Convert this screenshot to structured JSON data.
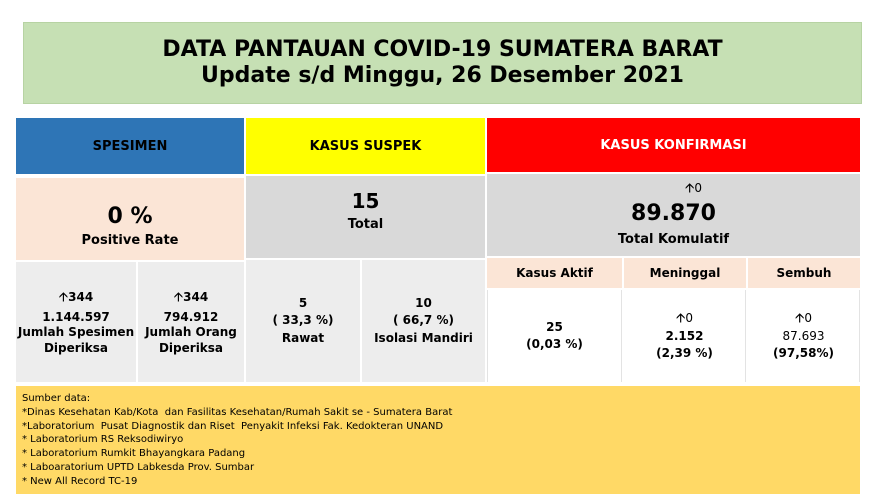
{
  "header": {
    "title_line1": "DATA PANTAUAN COVID-19 SUMATERA BARAT",
    "title_line2": "Update s/d Minggu, 26 Desember 2021"
  },
  "colors": {
    "spesimen": "#2e75b6",
    "suspek": "#ffff00",
    "konfirmasi": "#ff0000",
    "title_bg": "#c6e0b4",
    "sources_bg": "#ffd966"
  },
  "spesimen": {
    "header": "SPESIMEN",
    "positive_rate_value": "0 %",
    "positive_rate_label": "Positive Rate",
    "jumlah_spesimen": {
      "arrow": "🡩",
      "increase": "344",
      "value": "1.144.597",
      "label_line1": "Jumlah Spesimen",
      "label_line2": "Diperiksa"
    },
    "jumlah_orang": {
      "arrow": "🡩",
      "increase": "344",
      "value": "794.912",
      "label_line1": "Jumlah Orang",
      "label_line2": "Diperiksa"
    }
  },
  "suspek": {
    "header": "KASUS SUSPEK",
    "total_value": "15",
    "total_label": "Total",
    "rawat": {
      "value": "5",
      "percent": "( 33,3 %)",
      "label": "Rawat"
    },
    "isolasi": {
      "value": "10",
      "percent": "( 66,7 %)",
      "label": "Isolasi Mandiri"
    }
  },
  "konfirmasi": {
    "header": "KASUS KONFIRMASI",
    "arrow": "🡩",
    "total_increase": "0",
    "total_value": "89.870",
    "total_label": "Total Komulatif",
    "aktif": {
      "header": "Kasus Aktif",
      "value": "25",
      "percent": "(0,03 %)"
    },
    "meninggal": {
      "header": "Meninggal",
      "arrow": "🡩",
      "increase": "0",
      "value": "2.152",
      "percent": "(2,39 %)"
    },
    "sembuh": {
      "header": "Sembuh",
      "arrow": "🡩",
      "increase": "0",
      "value": "87.693",
      "percent": "(97,58%)"
    }
  },
  "sources": {
    "title": "Sumber data:",
    "items": [
      "*Dinas Kesehatan Kab/Kota  dan Fasilitas Kesehatan/Rumah Sakit se - Sumatera Barat",
      "*Laboratorium  Pusat Diagnostik dan Riset  Penyakit Infeksi Fak. Kedokteran UNAND",
      "* Laboratorium RS Reksodiwiryo",
      "* Laboratorium Rumkit Bhayangkara Padang",
      "* Laboaratorium UPTD Labkesda Prov. Sumbar",
      "* New All Record TC-19"
    ]
  }
}
